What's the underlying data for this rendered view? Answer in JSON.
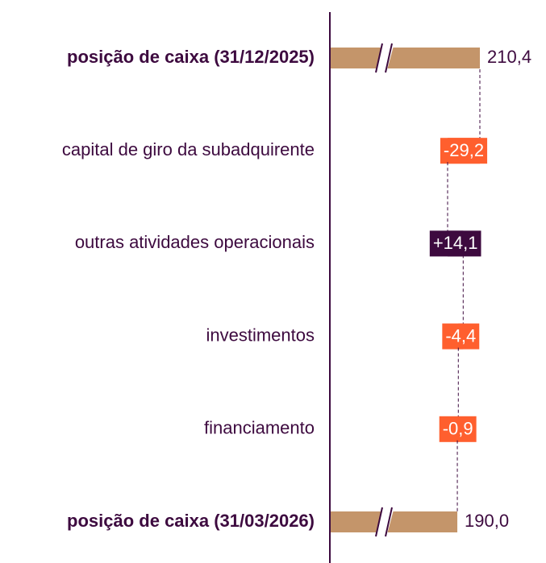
{
  "chart_data": {
    "type": "waterfall",
    "categories": [
      "posição de caixa (31/12/2025)",
      "capital de giro da subadquirente",
      "outras atividades operacionais",
      "investimentos",
      "financiamento",
      "posição de caixa (31/03/2026)"
    ],
    "values": [
      210.4,
      -29.2,
      14.1,
      -4.4,
      -0.9,
      190.0
    ],
    "value_labels": [
      "210,4",
      "-29,2",
      "+14,1",
      "-4,4",
      "-0,9",
      "190,0"
    ],
    "is_total": [
      true,
      false,
      false,
      false,
      false,
      true
    ],
    "total_color": "#c4956a",
    "positive_color": "#3d0a3f",
    "negative_color": "#ff5f2e",
    "axis_break": true
  }
}
